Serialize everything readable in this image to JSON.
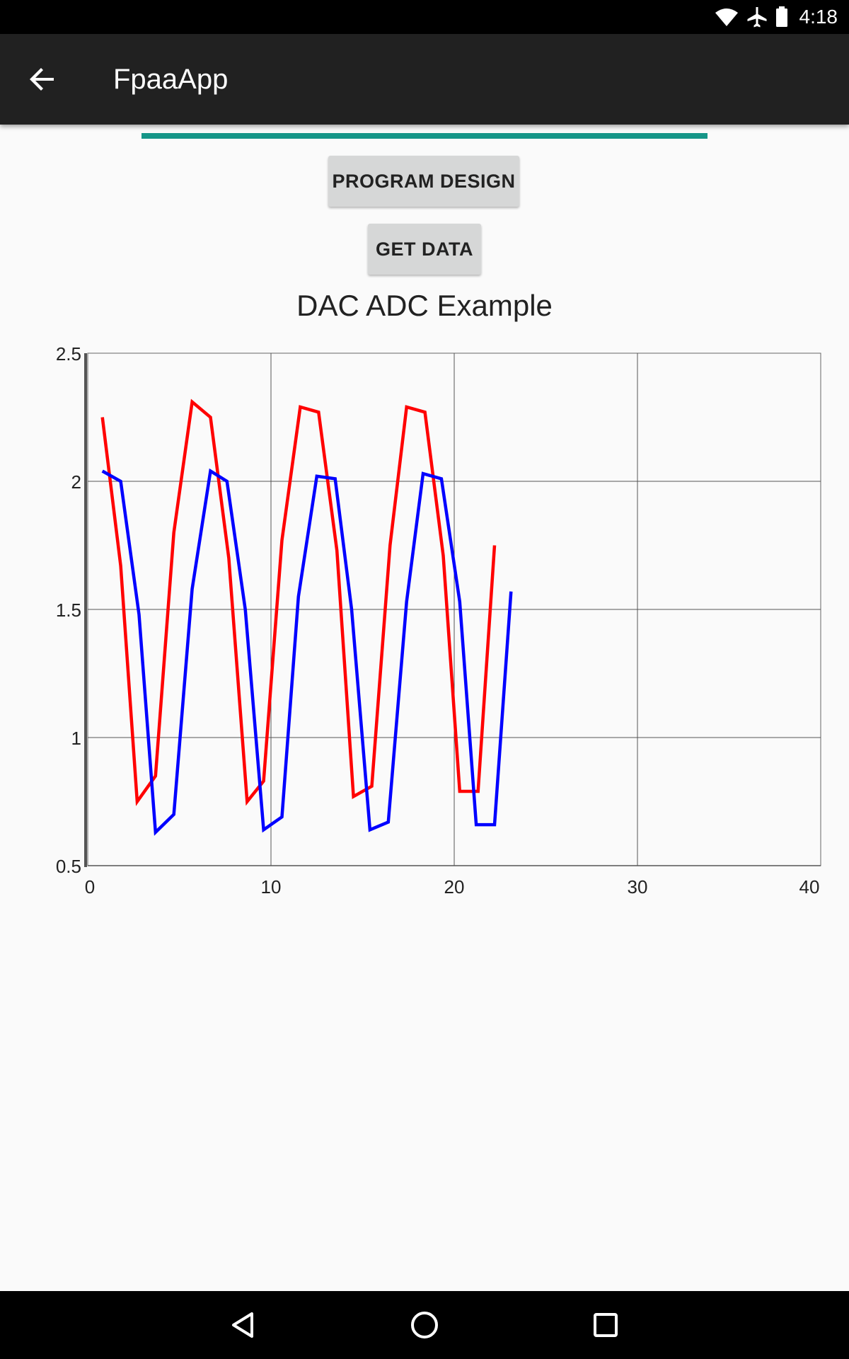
{
  "status_bar": {
    "time": "4:18",
    "icons": [
      "wifi-icon",
      "airplane-mode-icon",
      "battery-icon"
    ]
  },
  "app_bar": {
    "title": "FpaaApp",
    "back_icon": "arrow-back-icon"
  },
  "progress": {
    "value": 1.0,
    "color": "#159688"
  },
  "buttons": {
    "program_design": "PROGRAM DESIGN",
    "get_data": "GET DATA"
  },
  "chart_data": {
    "type": "line",
    "title": "DAC ADC Example",
    "xlabel": "",
    "ylabel": "",
    "xlim": [
      0,
      40
    ],
    "ylim": [
      0.5,
      2.5
    ],
    "x_ticks": [
      0,
      10,
      20,
      30,
      40
    ],
    "y_ticks": [
      0.5,
      1,
      1.5,
      2,
      2.5
    ],
    "y_tick_labels": [
      "0.5",
      "1",
      "1.5",
      "2",
      "2.5"
    ],
    "grid": true,
    "legend": "none",
    "series": [
      {
        "color": "#ff0000",
        "x": [
          0.8,
          1.8,
          2.7,
          3.7,
          4.7,
          5.7,
          6.7,
          7.7,
          8.7,
          9.6,
          10.6,
          11.6,
          12.6,
          13.6,
          14.5,
          15.5,
          16.5,
          17.4,
          18.4,
          19.4,
          20.3,
          21.3,
          22.2
        ],
        "y": [
          2.25,
          1.67,
          0.75,
          0.85,
          1.8,
          2.31,
          2.25,
          1.7,
          0.75,
          0.83,
          1.77,
          2.29,
          2.27,
          1.73,
          0.77,
          0.81,
          1.75,
          2.29,
          2.27,
          1.71,
          0.79,
          0.79,
          1.75
        ]
      },
      {
        "color": "#0000ff",
        "x": [
          0.8,
          1.8,
          2.8,
          3.7,
          4.7,
          5.7,
          6.7,
          7.6,
          8.6,
          9.6,
          10.6,
          11.5,
          12.5,
          13.5,
          14.4,
          15.4,
          16.4,
          17.4,
          18.3,
          19.3,
          20.3,
          21.2,
          22.2,
          23.1
        ],
        "y": [
          2.04,
          2.0,
          1.48,
          0.63,
          0.7,
          1.58,
          2.04,
          2.0,
          1.5,
          0.64,
          0.69,
          1.55,
          2.02,
          2.01,
          1.5,
          0.64,
          0.67,
          1.53,
          2.03,
          2.01,
          1.53,
          0.66,
          0.66,
          1.57
        ]
      }
    ]
  },
  "nav_bar": {
    "back": "nav-back-icon",
    "home": "nav-home-icon",
    "recents": "nav-recents-icon"
  }
}
